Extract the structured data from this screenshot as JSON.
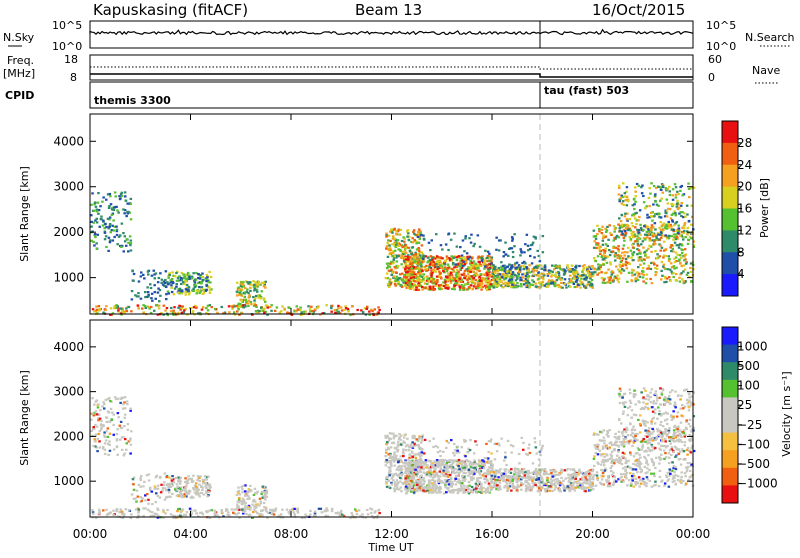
{
  "header": {
    "station": "Kapuskasing (fitACF)",
    "beam": "Beam 13",
    "date": "16/Oct/2015"
  },
  "sky_panel": {
    "left_label": "N.Sky",
    "left_ticks": [
      "10^5",
      "10^0"
    ],
    "right_ticks": [
      "10^5",
      "10^0"
    ],
    "right_label": "N.Search"
  },
  "freq_panel": {
    "left_label_1": "Freq.",
    "left_label_2": "[MHz]",
    "left_ticks": [
      "18",
      "8"
    ],
    "right_ticks": [
      "60",
      "0"
    ],
    "right_label": "Nave"
  },
  "cpid_panel": {
    "label": "CPID",
    "mode_1": "themis 3300",
    "mode_2": "tau (fast) 503",
    "switch_time_hours": 18
  },
  "colors": {
    "power_scale": [
      "#1a1aff",
      "#1f4fa8",
      "#2f8a6a",
      "#55c030",
      "#d8d020",
      "#f5a020",
      "#f06010",
      "#e81010"
    ],
    "velocity_scale": [
      "#e81010",
      "#f06010",
      "#f5a020",
      "#f5c040",
      "#c8c8c0",
      "#c8c8c0",
      "#55c030",
      "#2f8a6a",
      "#1f4fa8",
      "#1a1aff"
    ]
  },
  "chart_data": [
    {
      "type": "heatmap",
      "name": "power",
      "ylabel": "Slant Range [km]",
      "xlabel": "",
      "ylim": [
        200,
        4600
      ],
      "xlim_hours": [
        0,
        24
      ],
      "yticks": [
        "1000",
        "2000",
        "3000",
        "4000"
      ],
      "xticks": [
        "00:00",
        "04:00",
        "08:00",
        "12:00",
        "16:00",
        "20:00",
        "00:00"
      ],
      "colorbar_label": "Power [dB]",
      "colorbar_ticks": [
        "4",
        "8",
        "12",
        "16",
        "20",
        "24",
        "28"
      ],
      "colorbar_range": [
        0,
        32
      ]
    },
    {
      "type": "heatmap",
      "name": "velocity",
      "ylabel": "Slant Range [km]",
      "xlabel": "Time UT",
      "ylim": [
        200,
        4600
      ],
      "xlim_hours": [
        0,
        24
      ],
      "yticks": [
        "1000",
        "2000",
        "3000",
        "4000"
      ],
      "xticks": [
        "00:00",
        "04:00",
        "08:00",
        "12:00",
        "16:00",
        "20:00",
        "00:00"
      ],
      "colorbar_label": "Velocity [m s⁻¹]",
      "colorbar_ticks": [
        "1000",
        "500",
        "100",
        "25",
        "−25",
        "−100",
        "−500",
        "−1000"
      ]
    }
  ]
}
